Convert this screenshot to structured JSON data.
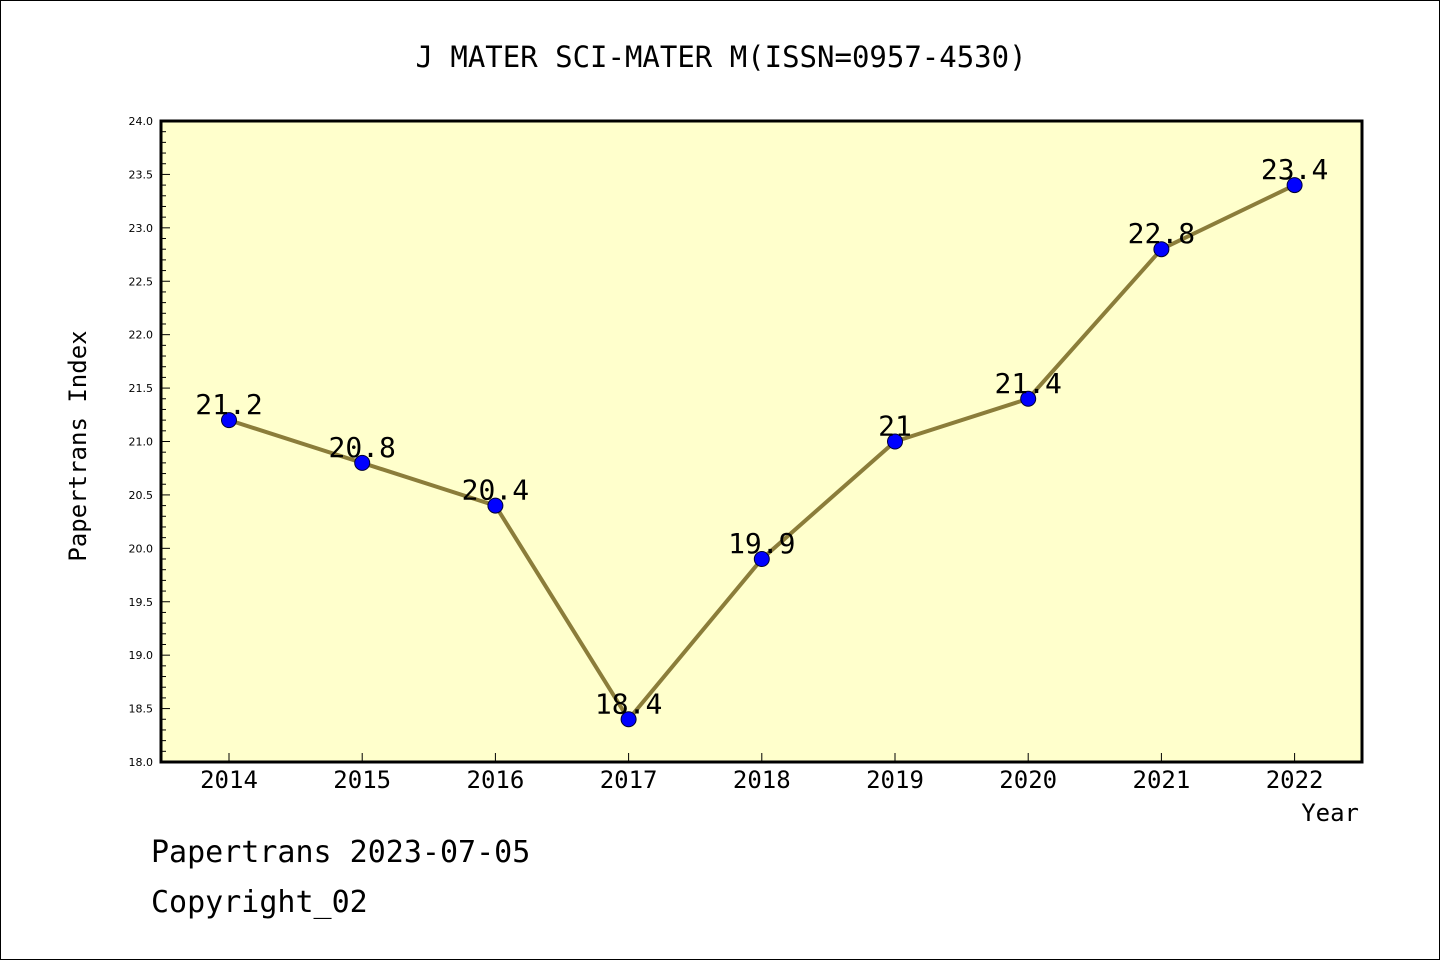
{
  "footer": {
    "stamp": "Papertrans 2023-07-05",
    "copyright": "Copyright_02"
  },
  "colors": {
    "plot_background": "#ffffcc",
    "line": "#8b7d3a",
    "marker": "#0000ff",
    "text": "#000000"
  },
  "chart_data": {
    "type": "line",
    "title": "J MATER SCI-MATER M(ISSN=0957-4530)",
    "xlabel": "Year",
    "ylabel": "Papertrans Index",
    "categories": [
      "2014",
      "2015",
      "2016",
      "2017",
      "2018",
      "2019",
      "2020",
      "2021",
      "2022"
    ],
    "values": [
      21.2,
      20.8,
      20.4,
      18.4,
      19.9,
      21.0,
      21.4,
      22.8,
      23.4
    ],
    "data_labels": [
      "21.2",
      "20.8",
      "20.4",
      "18.4",
      "19.9",
      "21",
      "21.4",
      "22.8",
      "23.4"
    ],
    "ylim": [
      18.0,
      24.0
    ],
    "yticks": [
      "18.0",
      "18.5",
      "19.0",
      "19.5",
      "20.0",
      "20.5",
      "21.0",
      "21.5",
      "22.0",
      "22.5",
      "23.0",
      "23.5",
      "24.0"
    ],
    "grid": false,
    "legend": "none"
  }
}
